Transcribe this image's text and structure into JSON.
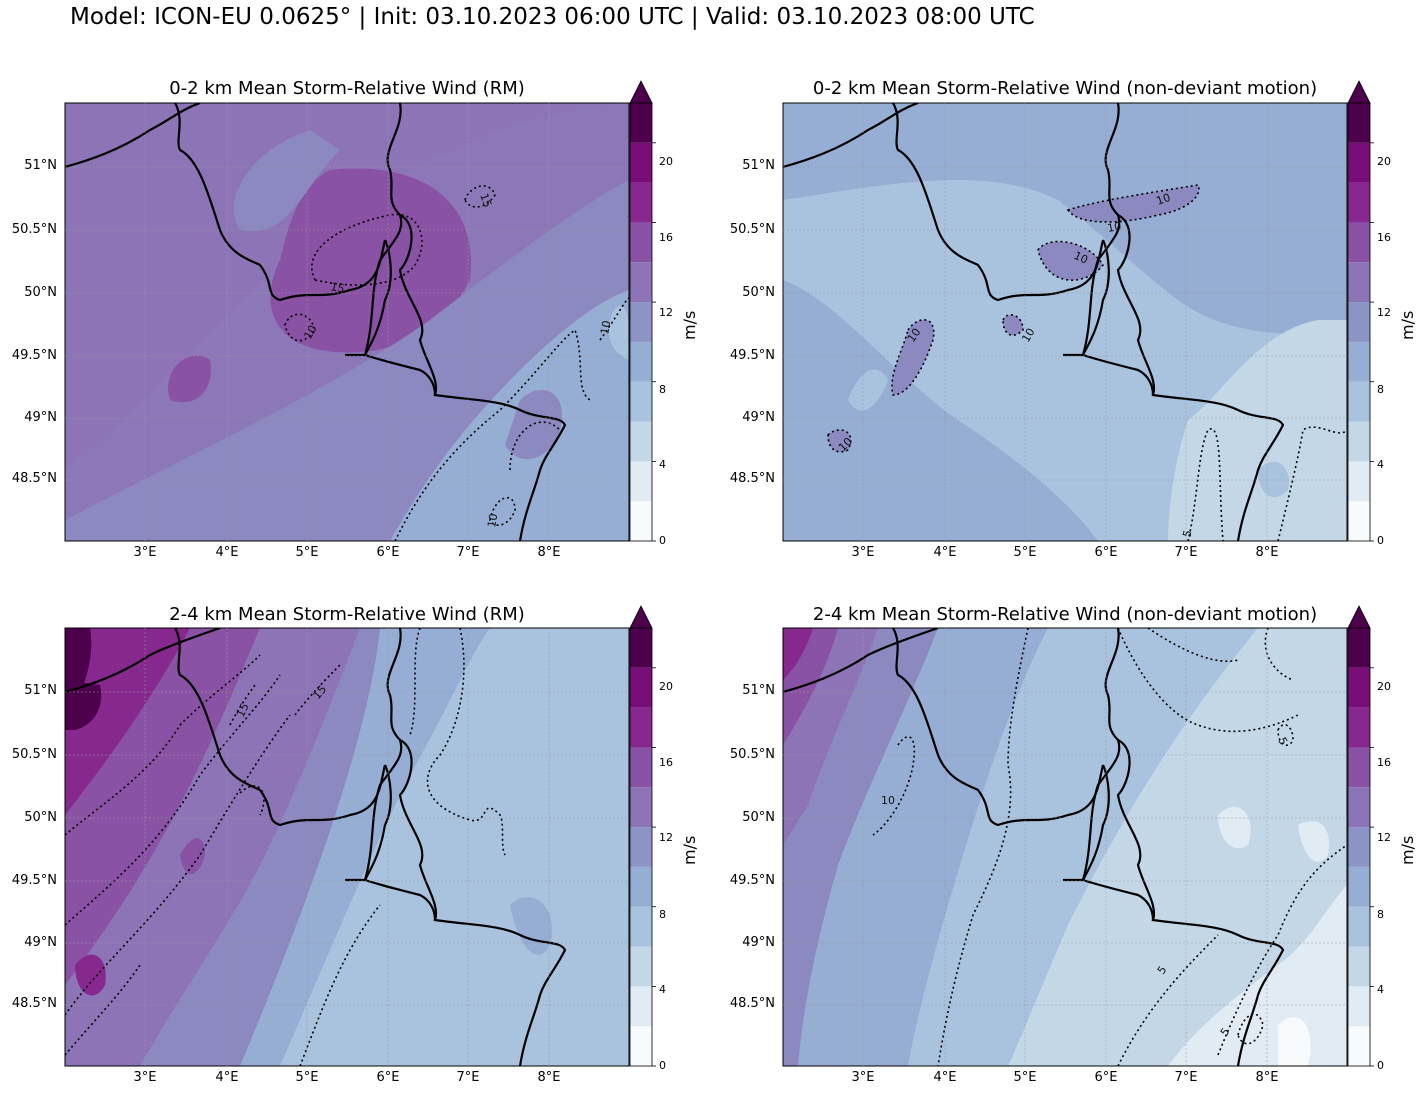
{
  "suptitle": "Model: ICON-EU 0.0625° | Init: 03.10.2023 06:00 UTC | Valid: 03.10.2023 08:00 UTC",
  "colorbar": {
    "unit": "m/s",
    "ticks": [
      "0",
      "4",
      "8",
      "12",
      "16",
      "20"
    ],
    "levels": [
      0,
      2,
      4,
      6,
      8,
      10,
      12,
      14,
      16,
      18,
      20,
      22
    ],
    "colors": [
      "#f7fbfd",
      "#e1ebf4",
      "#c4d7e7",
      "#a9c3df",
      "#96add4",
      "#8c94c6",
      "#8c74b6",
      "#8a52a5",
      "#86288e",
      "#7a0e79",
      "#4d004b"
    ],
    "extend_color": "#4d004b"
  },
  "axes": {
    "lat_labels": [
      "51°N",
      "50.5°N",
      "50°N",
      "49.5°N",
      "49°N",
      "48.5°N"
    ],
    "lon_labels": [
      "3°E",
      "4°E",
      "5°E",
      "6°E",
      "7°E",
      "8°E"
    ]
  },
  "panels": [
    {
      "title": "0-2 km Mean Storm-Relative Wind (RM)",
      "contour_labels": [
        "15",
        "15",
        "10",
        "10",
        "10"
      ]
    },
    {
      "title": "0-2 km Mean Storm-Relative Wind (non-deviant motion)",
      "contour_labels": [
        "10",
        "10",
        "10",
        "10",
        "10",
        "10",
        "5"
      ]
    },
    {
      "title": "2-4 km Mean Storm-Relative Wind (RM)",
      "contour_labels": [
        "15",
        "15"
      ]
    },
    {
      "title": "2-4 km Mean Storm-Relative Wind (non-deviant motion)",
      "contour_labels": [
        "10",
        "5",
        "5",
        "5"
      ]
    }
  ]
}
